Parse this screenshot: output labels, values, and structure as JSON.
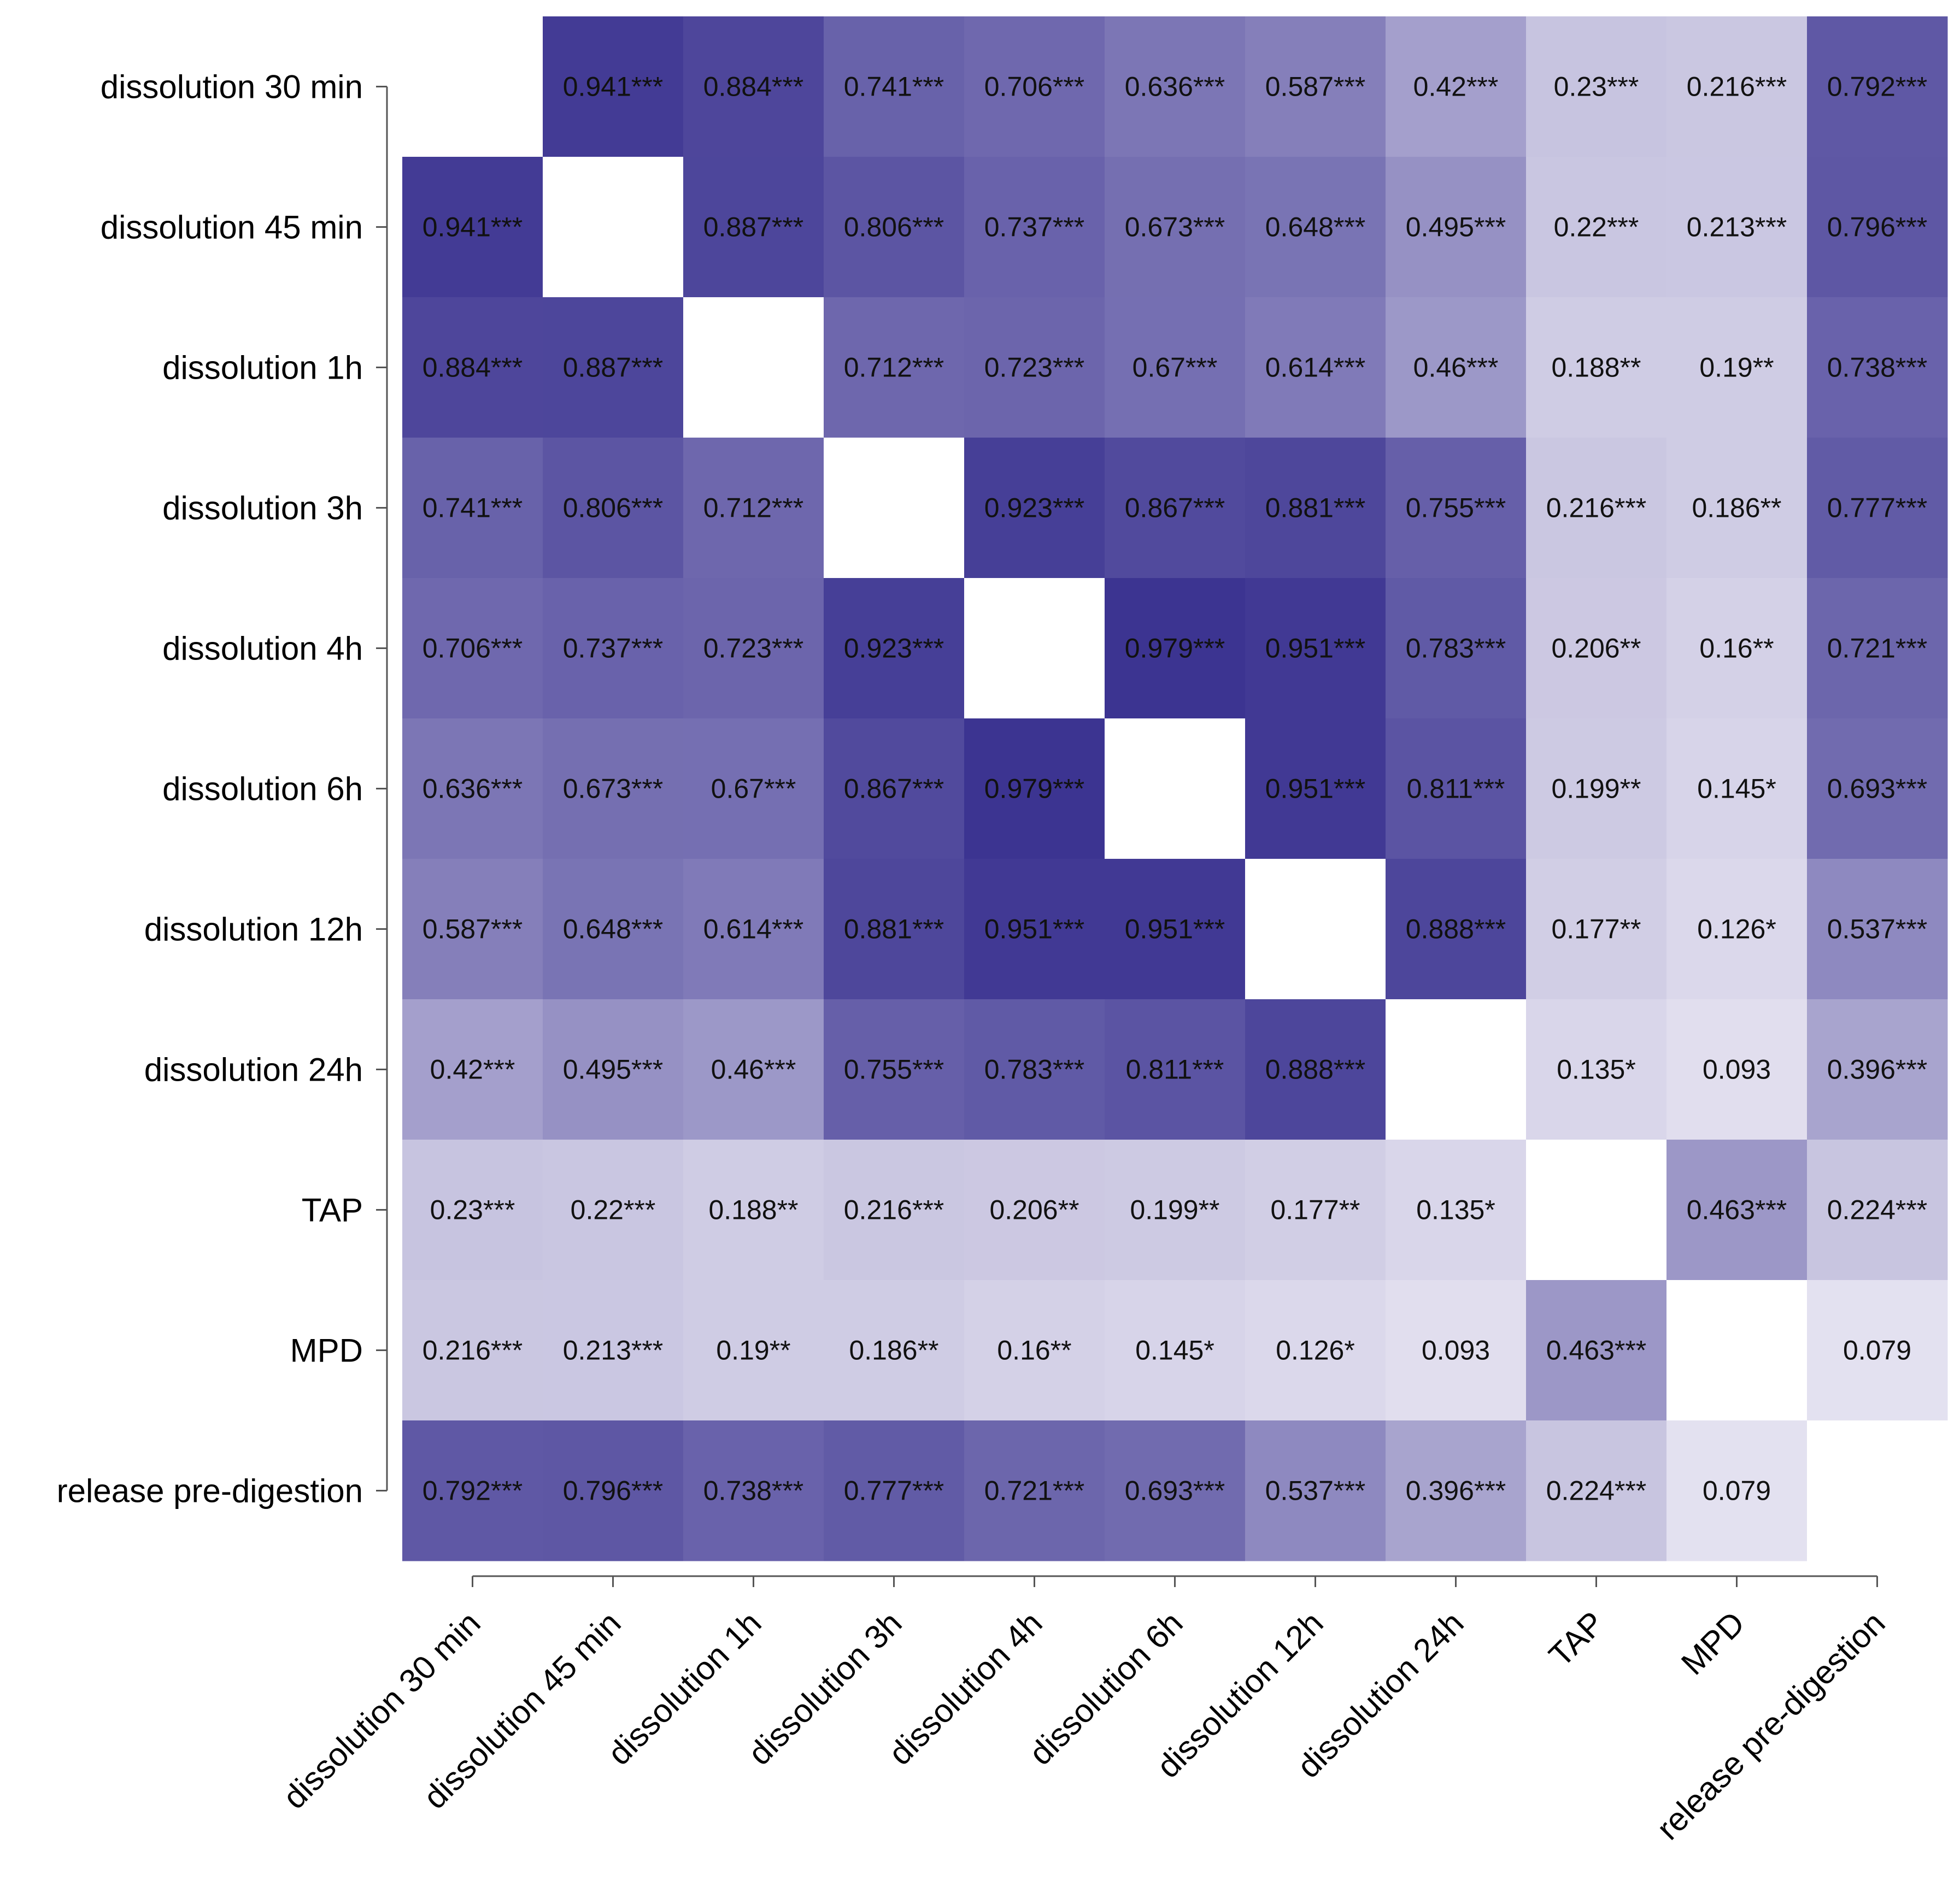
{
  "chart_data": {
    "type": "heatmap",
    "title": "",
    "xlabel": "",
    "ylabel": "",
    "variables": [
      "dissolution 30 min",
      "dissolution 45 min",
      "dissolution 1h",
      "dissolution 3h",
      "dissolution 4h",
      "dissolution 6h",
      "dissolution 12h",
      "dissolution 24h",
      "TAP",
      "MPD",
      "release pre-digestion"
    ],
    "x_tick_labels": [
      "dissolution 30 min",
      "dissolution 45 min",
      "dissolution 1h",
      "dissolution 3h",
      "dissolution 4h",
      "dissolution 6h",
      "dissolution 12h",
      "dissolution 24h",
      "TAP",
      "MPD",
      "release pre-digestion"
    ],
    "y_tick_labels": [
      "dissolution 30 min",
      "dissolution 45 min",
      "dissolution 1h",
      "dissolution 3h",
      "dissolution 4h",
      "dissolution 6h",
      "dissolution 12h",
      "dissolution 24h",
      "TAP",
      "MPD",
      "release pre-digestion"
    ],
    "values": [
      [
        null,
        0.941,
        0.884,
        0.741,
        0.706,
        0.636,
        0.587,
        0.42,
        0.23,
        0.216,
        0.792
      ],
      [
        0.941,
        null,
        0.887,
        0.806,
        0.737,
        0.673,
        0.648,
        0.495,
        0.22,
        0.213,
        0.796
      ],
      [
        0.884,
        0.887,
        null,
        0.712,
        0.723,
        0.67,
        0.614,
        0.46,
        0.188,
        0.19,
        0.738
      ],
      [
        0.741,
        0.806,
        0.712,
        null,
        0.923,
        0.867,
        0.881,
        0.755,
        0.216,
        0.186,
        0.777
      ],
      [
        0.706,
        0.737,
        0.723,
        0.923,
        null,
        0.979,
        0.951,
        0.783,
        0.206,
        0.16,
        0.721
      ],
      [
        0.636,
        0.673,
        0.67,
        0.867,
        0.979,
        null,
        0.951,
        0.811,
        0.199,
        0.145,
        0.693
      ],
      [
        0.587,
        0.648,
        0.614,
        0.881,
        0.951,
        0.951,
        null,
        0.888,
        0.177,
        0.126,
        0.537
      ],
      [
        0.42,
        0.495,
        0.46,
        0.755,
        0.783,
        0.811,
        0.888,
        null,
        0.135,
        0.093,
        0.396
      ],
      [
        0.23,
        0.22,
        0.188,
        0.216,
        0.206,
        0.199,
        0.177,
        0.135,
        null,
        0.463,
        0.224
      ],
      [
        0.216,
        0.213,
        0.19,
        0.186,
        0.16,
        0.145,
        0.126,
        0.093,
        0.463,
        null,
        0.079
      ],
      [
        0.792,
        0.796,
        0.738,
        0.777,
        0.721,
        0.693,
        0.537,
        0.396,
        0.224,
        0.079,
        null
      ]
    ],
    "labels": [
      [
        "",
        "0.941***",
        "0.884***",
        "0.741***",
        "0.706***",
        "0.636***",
        "0.587***",
        "0.42***",
        "0.23***",
        "0.216***",
        "0.792***"
      ],
      [
        "0.941***",
        "",
        "0.887***",
        "0.806***",
        "0.737***",
        "0.673***",
        "0.648***",
        "0.495***",
        "0.22***",
        "0.213***",
        "0.796***"
      ],
      [
        "0.884***",
        "0.887***",
        "",
        "0.712***",
        "0.723***",
        "0.67***",
        "0.614***",
        "0.46***",
        "0.188**",
        "0.19**",
        "0.738***"
      ],
      [
        "0.741***",
        "0.806***",
        "0.712***",
        "",
        "0.923***",
        "0.867***",
        "0.881***",
        "0.755***",
        "0.216***",
        "0.186**",
        "0.777***"
      ],
      [
        "0.706***",
        "0.737***",
        "0.723***",
        "0.923***",
        "",
        "0.979***",
        "0.951***",
        "0.783***",
        "0.206**",
        "0.16**",
        "0.721***"
      ],
      [
        "0.636***",
        "0.673***",
        "0.67***",
        "0.867***",
        "0.979***",
        "",
        "0.951***",
        "0.811***",
        "0.199**",
        "0.145*",
        "0.693***"
      ],
      [
        "0.587***",
        "0.648***",
        "0.614***",
        "0.881***",
        "0.951***",
        "0.951***",
        "",
        "0.888***",
        "0.177**",
        "0.126*",
        "0.537***"
      ],
      [
        "0.42***",
        "0.495***",
        "0.46***",
        "0.755***",
        "0.783***",
        "0.811***",
        "0.888***",
        "",
        "0.135*",
        "0.093",
        "0.396***"
      ],
      [
        "0.23***",
        "0.22***",
        "0.188**",
        "0.216***",
        "0.206**",
        "0.199**",
        "0.177**",
        "0.135*",
        "",
        "0.463***",
        "0.224***"
      ],
      [
        "0.216***",
        "0.213***",
        "0.19**",
        "0.186**",
        "0.16**",
        "0.145*",
        "0.126*",
        "0.093",
        "0.463***",
        "",
        "0.079"
      ],
      [
        "0.792***",
        "0.796***",
        "0.738***",
        "0.777***",
        "0.721***",
        "0.693***",
        "0.537***",
        "0.396***",
        "0.224***",
        "0.079",
        ""
      ]
    ],
    "diagonal": "blank",
    "colormap": {
      "low_color": "#f2f0f8",
      "high_color": "#38308f",
      "range": [
        0,
        1
      ]
    },
    "grid": false,
    "legend": "none"
  }
}
